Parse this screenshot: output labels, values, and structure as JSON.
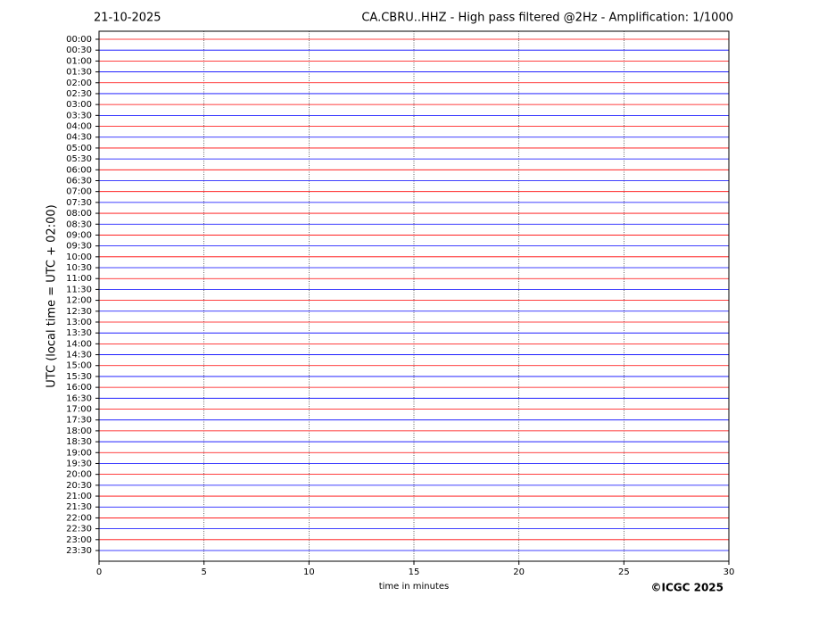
{
  "chart_data": {
    "type": "helicorder",
    "date": "21-10-2025",
    "title": "CA.CBRU..HHZ - High pass filtered @2Hz - Amplification: 1/1000",
    "xlabel": "time in minutes",
    "ylabel": "UTC (local time = UTC + 02:00)",
    "copyright": "©ICGC 2025",
    "categories": [
      "00:00",
      "00:30",
      "01:00",
      "01:30",
      "02:00",
      "02:30",
      "03:00",
      "03:30",
      "04:00",
      "04:30",
      "05:00",
      "05:30",
      "06:00",
      "06:30",
      "07:00",
      "07:30",
      "08:00",
      "08:30",
      "09:00",
      "09:30",
      "10:00",
      "10:30",
      "11:00",
      "11:30",
      "12:00",
      "12:30",
      "13:00",
      "13:30",
      "14:00",
      "14:30",
      "15:00",
      "15:30",
      "16:00",
      "16:30",
      "17:00",
      "17:30",
      "18:00",
      "18:30",
      "19:00",
      "19:30",
      "20:00",
      "20:30",
      "21:00",
      "21:30",
      "22:00",
      "22:30",
      "23:00",
      "23:30"
    ],
    "colors": [
      "#ff0000",
      "#0000ff"
    ],
    "xlim": [
      0,
      30
    ],
    "xticks": [
      0,
      5,
      10,
      15,
      20,
      25,
      30
    ],
    "grid": true
  }
}
